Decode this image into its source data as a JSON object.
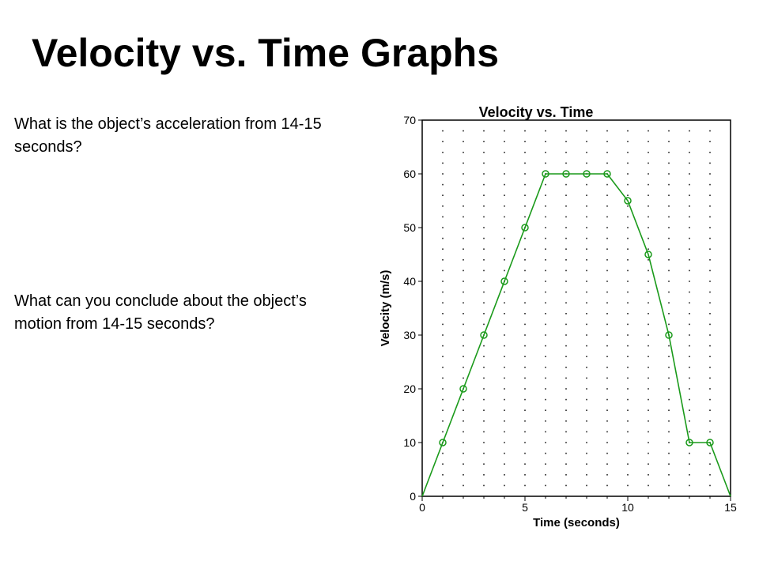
{
  "slide": {
    "title": "Velocity vs. Time Graphs",
    "question_1": "What is the object’s acceleration from 14-15 seconds?",
    "question_2": "What can you conclude about the object’s motion from 14-15 seconds?"
  },
  "chart_data": {
    "type": "line",
    "title": "Velocity vs. Time",
    "xlabel": "Time (seconds)",
    "ylabel": "Velocity (m/s)",
    "xlim": [
      0,
      15
    ],
    "ylim": [
      0,
      70
    ],
    "x_ticks": [
      0,
      5,
      10,
      15
    ],
    "y_ticks": [
      0,
      10,
      20,
      30,
      40,
      50,
      60,
      70
    ],
    "grid": "dotted",
    "series": [
      {
        "color": "#1a9a1a",
        "marker": "open-circle",
        "x": [
          0,
          1,
          2,
          3,
          4,
          5,
          6,
          7,
          8,
          9,
          10,
          11,
          12,
          13,
          14,
          15
        ],
        "y": [
          0,
          10,
          20,
          30,
          40,
          50,
          60,
          60,
          60,
          60,
          55,
          45,
          30,
          10,
          10,
          0
        ]
      }
    ]
  }
}
